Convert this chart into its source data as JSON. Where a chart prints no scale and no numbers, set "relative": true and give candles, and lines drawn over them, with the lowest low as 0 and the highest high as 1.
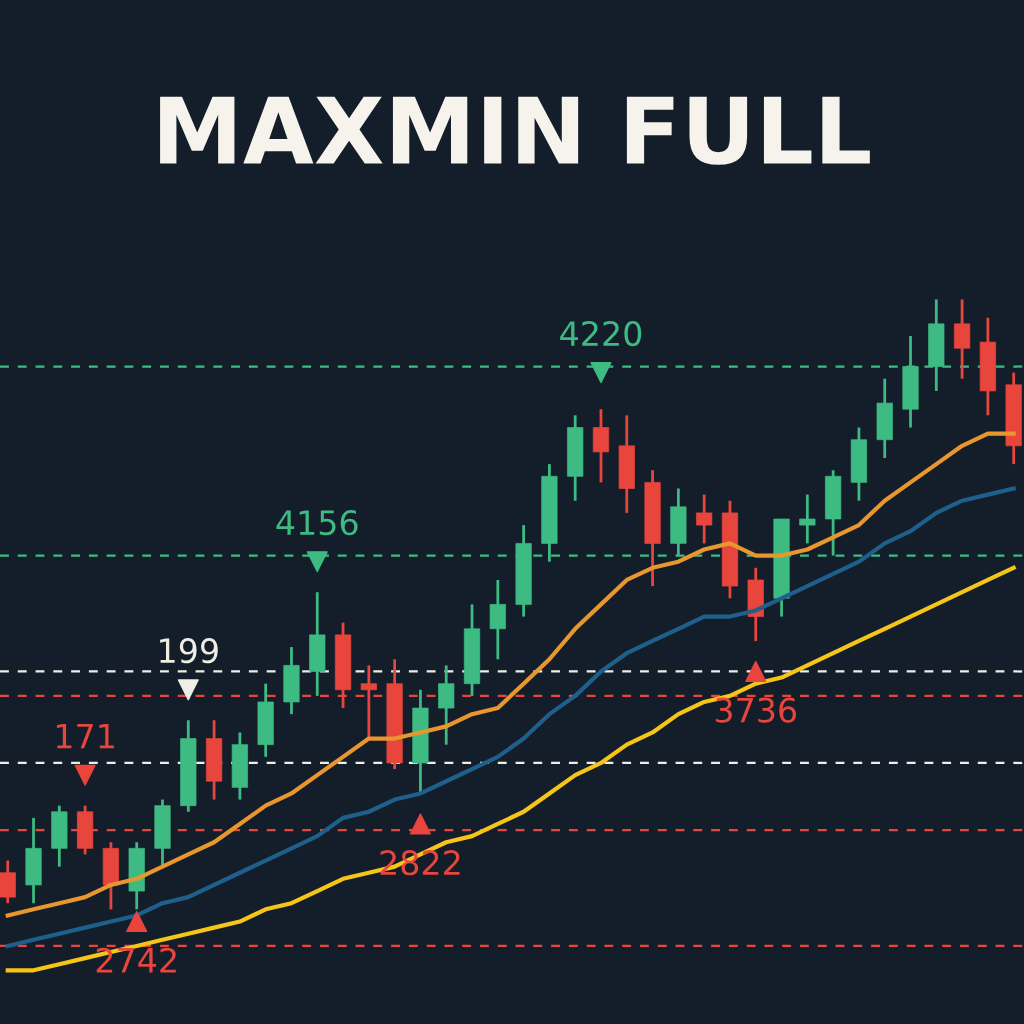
{
  "chart_data": {
    "type": "candlestick",
    "title": "MAXMIN FULL",
    "relative": true,
    "annotations": [
      "171",
      "199",
      "4156",
      "4220",
      "2742",
      "2822",
      "3736"
    ],
    "categories": [
      null,
      null,
      null,
      null,
      null,
      null,
      null,
      null,
      null,
      null,
      null,
      null,
      null,
      null,
      null,
      null,
      null,
      null,
      null,
      null,
      null,
      null,
      null,
      null,
      null,
      null,
      null,
      null,
      null,
      null,
      null,
      null,
      null,
      null,
      null,
      null,
      null,
      null,
      null,
      null
    ],
    "series": [
      {
        "type": "line",
        "color": "#1f5f8b",
        "values": [
          -0.06,
          -0.05,
          -0.04,
          -0.03,
          -0.02,
          -0.01,
          0.01,
          0.02,
          0.04,
          0.06,
          0.08,
          0.1,
          0.12,
          0.15,
          0.16,
          0.18,
          0.19,
          0.21,
          0.23,
          0.25,
          0.28,
          0.32,
          0.35,
          0.39,
          0.42,
          0.44,
          0.46,
          0.48,
          0.48,
          0.49,
          0.51,
          0.53,
          0.55,
          0.57,
          0.6,
          0.62,
          0.65,
          0.67,
          0.68,
          0.69
        ]
      },
      {
        "type": "line",
        "color": "#f5c518",
        "values": [
          -0.1,
          -0.1,
          -0.09,
          -0.08,
          -0.07,
          -0.06,
          -0.05,
          -0.04,
          -0.03,
          -0.02,
          0.0,
          0.01,
          0.03,
          0.05,
          0.06,
          0.07,
          0.09,
          0.11,
          0.12,
          0.14,
          0.16,
          0.19,
          0.22,
          0.24,
          0.27,
          0.29,
          0.32,
          0.34,
          0.35,
          0.37,
          0.38,
          0.4,
          0.42,
          0.44,
          0.46,
          0.48,
          0.5,
          0.52,
          0.54,
          0.56
        ]
      },
      {
        "type": "line",
        "color": "#e8962e",
        "values": [
          -0.01,
          0.0,
          0.01,
          0.02,
          0.04,
          0.05,
          0.07,
          0.09,
          0.11,
          0.14,
          0.17,
          0.19,
          0.22,
          0.25,
          0.28,
          0.28,
          0.29,
          0.3,
          0.32,
          0.33,
          0.37,
          0.41,
          0.46,
          0.5,
          0.54,
          0.56,
          0.57,
          0.59,
          0.6,
          0.58,
          0.58,
          0.59,
          0.61,
          0.63,
          0.67,
          0.7,
          0.73,
          0.76,
          0.78,
          0.78
        ]
      },
      {
        "ohlc": [
          [
            0.06,
            0.08,
            0.01,
            0.02
          ],
          [
            0.04,
            0.15,
            0.01,
            0.1
          ],
          [
            0.1,
            0.17,
            0.07,
            0.16
          ],
          [
            0.16,
            0.17,
            0.09,
            0.1
          ],
          [
            0.1,
            0.11,
            0.0,
            0.04
          ],
          [
            0.03,
            0.11,
            0.0,
            0.1
          ],
          [
            0.1,
            0.18,
            0.07,
            0.17
          ],
          [
            0.17,
            0.31,
            0.16,
            0.28
          ],
          [
            0.28,
            0.31,
            0.18,
            0.21
          ],
          [
            0.2,
            0.29,
            0.18,
            0.27
          ],
          [
            0.27,
            0.37,
            0.25,
            0.34
          ],
          [
            0.34,
            0.43,
            0.32,
            0.4
          ],
          [
            0.39,
            0.52,
            0.35,
            0.45
          ],
          [
            0.45,
            0.47,
            0.33,
            0.36
          ],
          [
            0.37,
            0.4,
            0.28,
            0.36
          ],
          [
            0.37,
            0.41,
            0.23,
            0.24
          ],
          [
            0.24,
            0.36,
            0.19,
            0.33
          ],
          [
            0.33,
            0.4,
            0.27,
            0.37
          ],
          [
            0.37,
            0.5,
            0.35,
            0.46
          ],
          [
            0.46,
            0.54,
            0.41,
            0.5
          ],
          [
            0.5,
            0.63,
            0.48,
            0.6
          ],
          [
            0.6,
            0.73,
            0.57,
            0.71
          ],
          [
            0.71,
            0.81,
            0.67,
            0.79
          ],
          [
            0.79,
            0.82,
            0.7,
            0.75
          ],
          [
            0.76,
            0.81,
            0.65,
            0.69
          ],
          [
            0.7,
            0.72,
            0.53,
            0.6
          ],
          [
            0.6,
            0.69,
            0.58,
            0.66
          ],
          [
            0.65,
            0.68,
            0.6,
            0.63
          ],
          [
            0.65,
            0.67,
            0.51,
            0.53
          ],
          [
            0.54,
            0.56,
            0.44,
            0.48
          ],
          [
            0.51,
            0.64,
            0.48,
            0.64
          ],
          [
            0.63,
            0.68,
            0.6,
            0.64
          ],
          [
            0.64,
            0.72,
            0.58,
            0.71
          ],
          [
            0.7,
            0.79,
            0.67,
            0.77
          ],
          [
            0.77,
            0.87,
            0.74,
            0.83
          ],
          [
            0.82,
            0.94,
            0.79,
            0.89
          ],
          [
            0.89,
            1.0,
            0.85,
            0.96
          ],
          [
            0.96,
            1.0,
            0.87,
            0.92
          ],
          [
            0.93,
            0.97,
            0.81,
            0.85
          ],
          [
            0.86,
            0.88,
            0.73,
            0.76
          ]
        ],
        "colors": [
          "#e8453c",
          "#3dbb82",
          "#3dbb82",
          "#e8453c",
          "#e8453c",
          "#3dbb82",
          "#3dbb82",
          "#3dbb82",
          "#e8453c",
          "#3dbb82",
          "#3dbb82",
          "#3dbb82",
          "#3dbb82",
          "#e8453c",
          "#e8453c",
          "#e8453c",
          "#3dbb82",
          "#3dbb82",
          "#3dbb82",
          "#3dbb82",
          "#3dbb82",
          "#3dbb82",
          "#3dbb82",
          "#e8453c",
          "#e8453c",
          "#e8453c",
          "#3dbb82",
          "#e8453c",
          "#e8453c",
          "#e8453c",
          "#3dbb82",
          "#3dbb82",
          "#3dbb82",
          "#3dbb82",
          "#3dbb82",
          "#3dbb82",
          "#3dbb82",
          "#e8453c",
          "#e8453c",
          "#e8453c"
        ]
      },
      {
        "type": "scatter",
        "marker": "triangle",
        "values": [
          null,
          null,
          null,
          0.22,
          null,
          null,
          null,
          0.36,
          null,
          null,
          null,
          null,
          0.57,
          null,
          null,
          null,
          null,
          null,
          null,
          null,
          null,
          null,
          null,
          0.88,
          null,
          null,
          null,
          null,
          null,
          null,
          null,
          null,
          null,
          null,
          null,
          null,
          null,
          null,
          null,
          null
        ],
        "colors": [
          null,
          null,
          null,
          "#e8453c",
          null,
          null,
          null,
          "#f0ede4",
          null,
          null,
          null,
          null,
          "#3dbb82",
          null,
          null,
          null,
          null,
          null,
          null,
          null,
          null,
          null,
          null,
          "#3dbb82",
          null,
          null,
          null,
          null,
          null,
          null,
          null,
          null,
          null,
          null,
          null,
          null,
          null,
          null,
          null,
          null
        ]
      },
      {
        "type": "scatter",
        "marker": "triangle",
        "values": [
          null,
          null,
          null,
          null,
          null,
          -0.02,
          null,
          null,
          null,
          null,
          null,
          null,
          null,
          null,
          null,
          null,
          0.14,
          null,
          null,
          null,
          null,
          null,
          null,
          null,
          null,
          null,
          null,
          null,
          null,
          0.39,
          null,
          null,
          null,
          null,
          null,
          null,
          null,
          null,
          null,
          null
        ],
        "colors": [
          null,
          null,
          null,
          null,
          null,
          "#e8453c",
          null,
          null,
          null,
          null,
          null,
          null,
          null,
          null,
          null,
          null,
          "#e8453c",
          null,
          null,
          null,
          null,
          null,
          null,
          null,
          null,
          null,
          null,
          null,
          null,
          "#e8453c",
          null,
          null,
          null,
          null,
          null,
          null,
          null,
          null,
          null,
          null
        ]
      }
    ],
    "ref_lines": [
      {
        "axis": "y",
        "value": 0.24,
        "color": "#f0ede4",
        "line_style": "dashed"
      },
      {
        "axis": "y",
        "value": 0.39,
        "color": "#f0ede4",
        "line_style": "dashed"
      },
      {
        "axis": "y",
        "value": 0.58,
        "color": "#3dbb82",
        "line_style": "dashed"
      },
      {
        "axis": "y",
        "value": 0.89,
        "color": "#3dbb82",
        "line_style": "dashed"
      },
      {
        "axis": "y",
        "value": -0.06,
        "color": "#e8453c",
        "line_style": "dashed"
      },
      {
        "axis": "y",
        "value": 0.13,
        "color": "#e8453c",
        "line_style": "dashed"
      },
      {
        "axis": "y",
        "value": 0.35,
        "color": "#e8453c",
        "line_style": "dashed"
      }
    ]
  }
}
